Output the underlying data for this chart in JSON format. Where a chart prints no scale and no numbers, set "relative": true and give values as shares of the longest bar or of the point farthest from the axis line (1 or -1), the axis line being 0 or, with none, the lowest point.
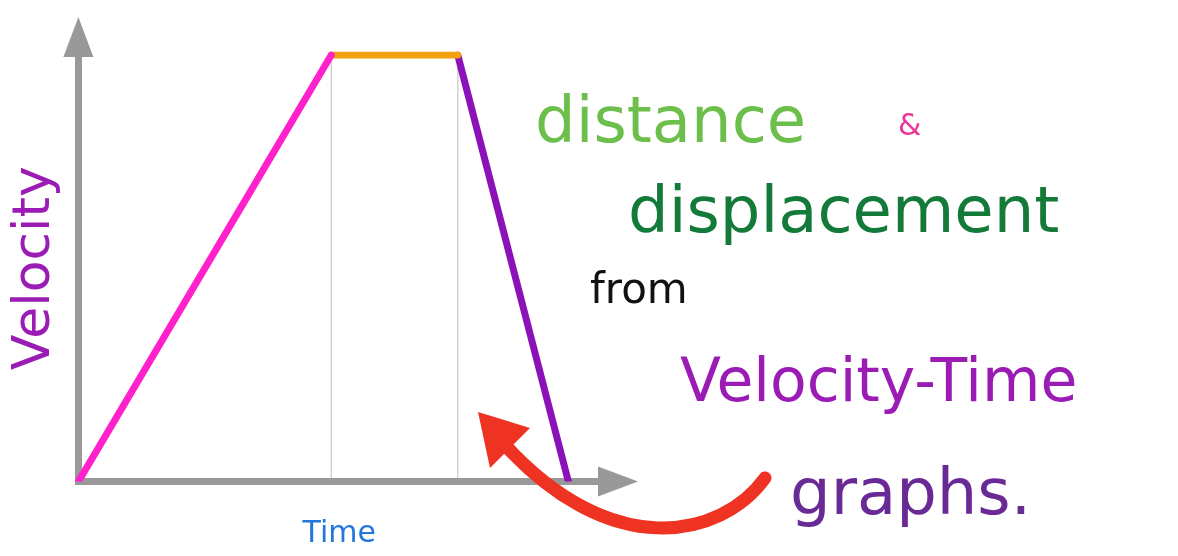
{
  "chart_data": {
    "type": "line",
    "title": "distance & displacement from Velocity-Time graphs.",
    "xlabel": "Time",
    "ylabel": "Velocity",
    "relative": true,
    "categories": [
      null,
      null,
      null,
      null,
      null,
      null,
      null,
      null,
      null,
      null,
      null,
      null,
      null,
      null,
      null,
      null,
      null,
      null,
      null,
      null,
      null,
      null,
      null,
      null,
      null,
      null,
      null,
      null,
      null,
      null,
      null,
      null,
      null,
      null
    ],
    "series": [
      {
        "color": "#ff22cc",
        "values": [
          0,
          null,
          null,
          null,
          null,
          null,
          null,
          null,
          null,
          null,
          null,
          null,
          null,
          null,
          null,
          null,
          1,
          null,
          null,
          null,
          null,
          null,
          null,
          null,
          null,
          null,
          null,
          null,
          null,
          null,
          null,
          null,
          null,
          null
        ]
      },
      {
        "color": "#f5a00f",
        "values": [
          null,
          null,
          null,
          null,
          null,
          null,
          null,
          null,
          null,
          null,
          null,
          null,
          null,
          null,
          null,
          null,
          1,
          null,
          null,
          null,
          null,
          null,
          null,
          null,
          1,
          null,
          null,
          null,
          null,
          null,
          null,
          null,
          null,
          null
        ]
      },
      {
        "color": "#8a12b8",
        "values": [
          null,
          null,
          null,
          null,
          null,
          null,
          null,
          null,
          null,
          null,
          null,
          null,
          null,
          null,
          null,
          null,
          null,
          null,
          null,
          null,
          null,
          null,
          null,
          null,
          1,
          null,
          null,
          null,
          null,
          null,
          null,
          0,
          null,
          null
        ]
      }
    ],
    "grid": false,
    "legend": false,
    "marker": "none",
    "line_style": "solid"
  }
}
